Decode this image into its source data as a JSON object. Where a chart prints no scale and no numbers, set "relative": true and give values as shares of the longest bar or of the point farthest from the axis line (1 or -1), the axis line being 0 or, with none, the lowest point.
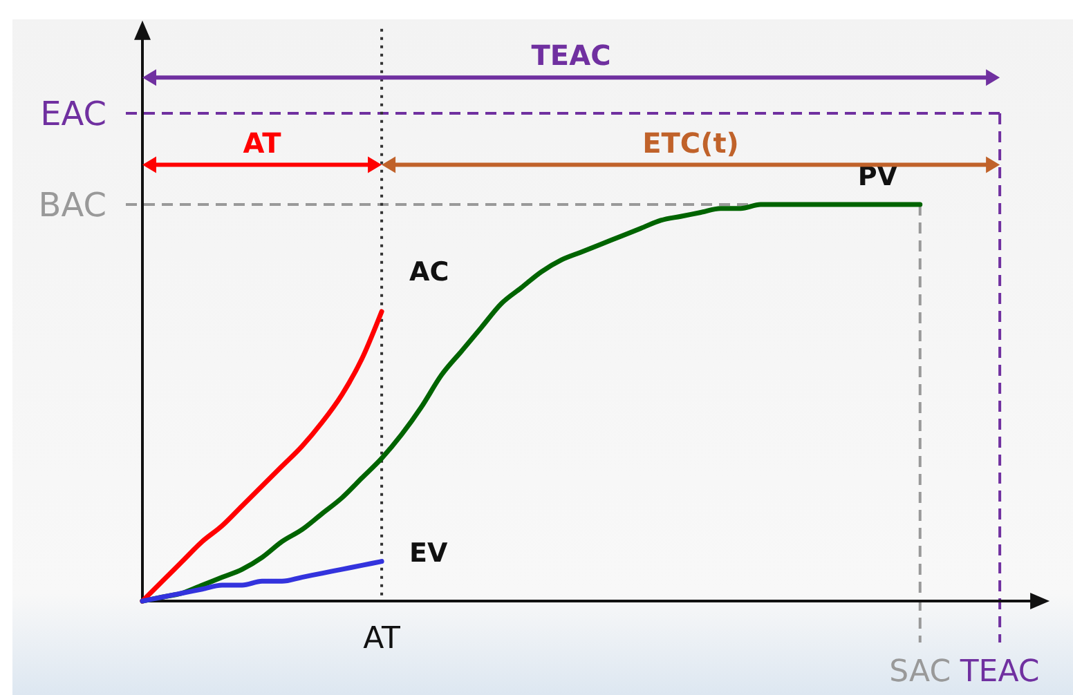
{
  "chart_data": {
    "type": "line",
    "relative": true,
    "categories": [
      null,
      null,
      null,
      null,
      null,
      null,
      null,
      null,
      null,
      null,
      null,
      null,
      "AT",
      null,
      null,
      null,
      null,
      null,
      null,
      null,
      null,
      null,
      null,
      null,
      null,
      null,
      null,
      null,
      null,
      null,
      null,
      null,
      null,
      null,
      null,
      null,
      null,
      null,
      null,
      "SAC",
      null,
      null,
      null,
      "TEAC"
    ],
    "series": [
      {
        "name": "PV",
        "color": "#006400",
        "values": [
          0,
          0.01,
          0.02,
          0.04,
          0.06,
          0.08,
          0.11,
          0.15,
          0.18,
          0.22,
          0.26,
          0.31,
          0.36,
          0.42,
          0.49,
          0.57,
          0.63,
          0.69,
          0.75,
          0.79,
          0.83,
          0.86,
          0.88,
          0.9,
          0.92,
          0.94,
          0.96,
          0.97,
          0.98,
          0.99,
          0.99,
          1,
          1,
          1,
          1,
          1,
          1,
          1,
          1,
          1,
          null,
          null,
          null,
          null
        ]
      },
      {
        "name": "AC",
        "color": "#ff0000",
        "values": [
          0,
          0.05,
          0.1,
          0.15,
          0.19,
          0.24,
          0.29,
          0.34,
          0.39,
          0.45,
          0.52,
          0.61,
          0.73,
          null,
          null,
          null,
          null,
          null,
          null,
          null,
          null,
          null,
          null,
          null,
          null,
          null,
          null,
          null,
          null,
          null,
          null,
          null,
          null,
          null,
          null,
          null,
          null,
          null,
          null,
          null,
          null,
          null,
          null,
          null
        ]
      },
      {
        "name": "EV",
        "color": "#3333dd",
        "values": [
          0,
          0.01,
          0.02,
          0.03,
          0.04,
          0.04,
          0.05,
          0.05,
          0.06,
          0.07,
          0.08,
          0.09,
          0.1,
          null,
          null,
          null,
          null,
          null,
          null,
          null,
          null,
          null,
          null,
          null,
          null,
          null,
          null,
          null,
          null,
          null,
          null,
          null,
          null,
          null,
          null,
          null,
          null,
          null,
          null,
          null,
          null,
          null,
          null,
          null
        ]
      }
    ],
    "ref_lines": [
      {
        "axis": "y",
        "value": 1,
        "label": "BAC",
        "color": "#999999",
        "line_style": "dashed"
      },
      {
        "axis": "y",
        "value": 1.23,
        "label": "EAC",
        "color": "#7030a0",
        "line_style": "dashed"
      },
      {
        "axis": "x",
        "value": "AT",
        "label": null,
        "color": "#333333",
        "line_style": "dotted"
      },
      {
        "axis": "x",
        "value": "SAC",
        "label": null,
        "color": "#999999",
        "line_style": "dashed"
      },
      {
        "axis": "x",
        "value": "TEAC",
        "label": null,
        "color": "#7030a0",
        "line_style": "dashed"
      }
    ],
    "annotations": [
      "TEAC",
      "AT",
      "ETC(t)"
    ],
    "grid": false,
    "marker": "none",
    "line_style": "solid"
  }
}
